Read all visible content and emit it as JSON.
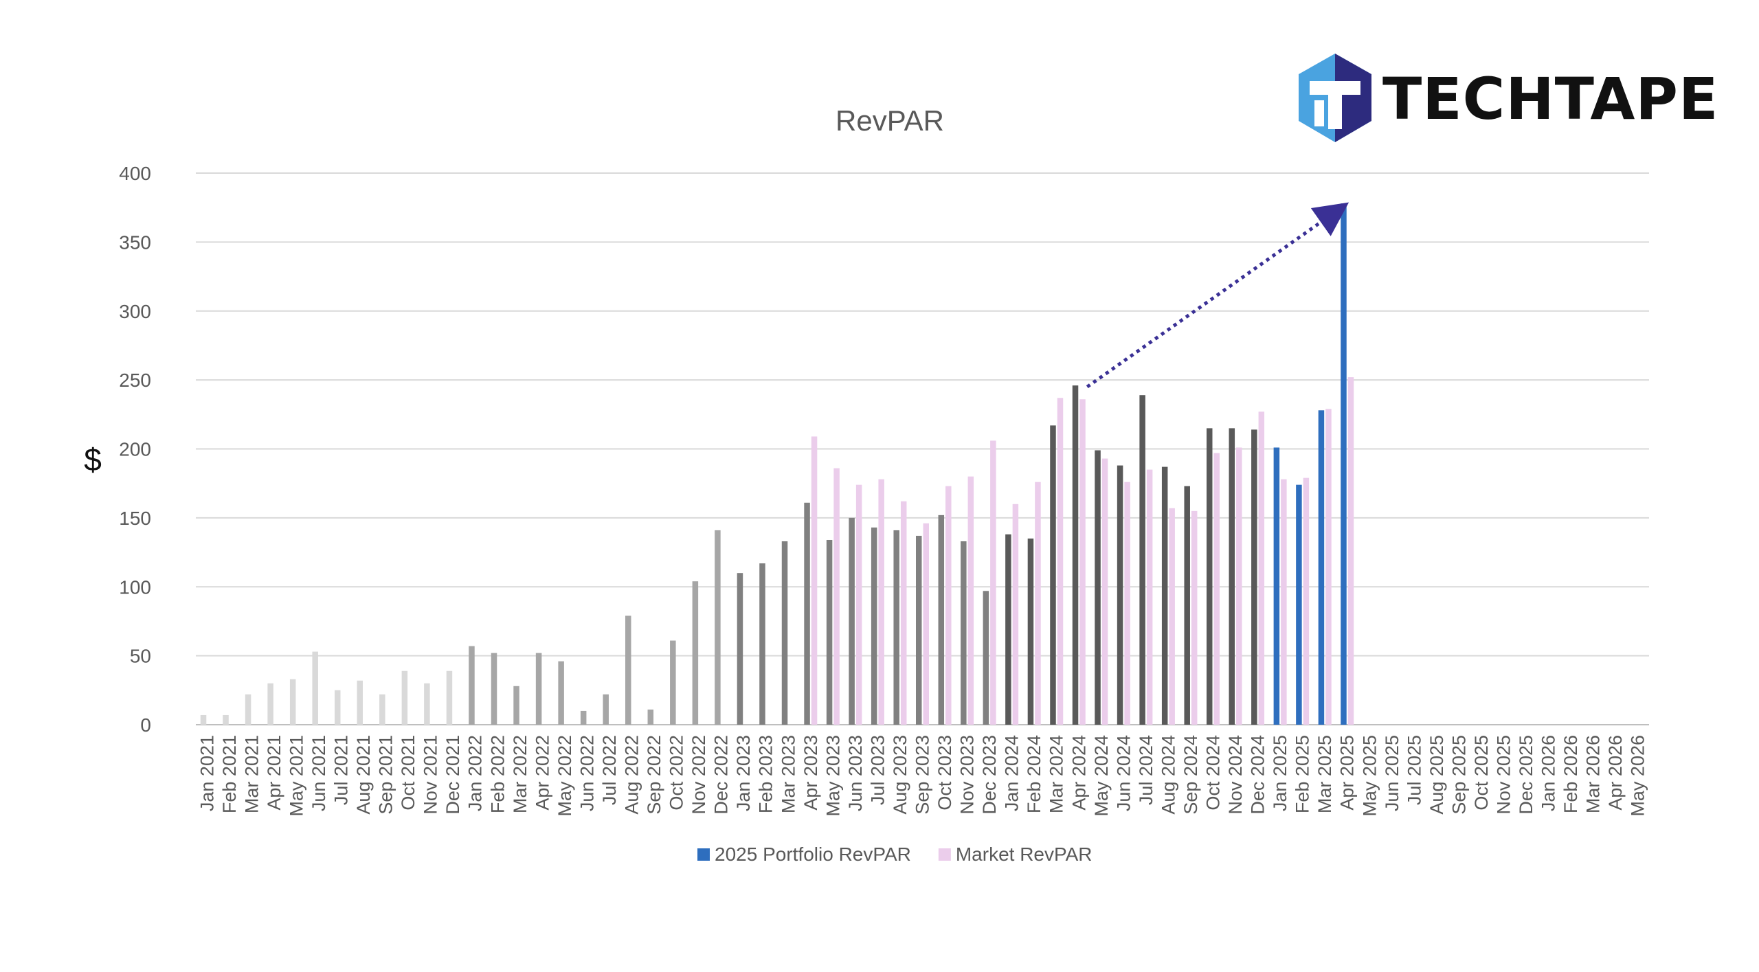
{
  "logo": {
    "text": "TECHTAPE",
    "icon": "hexagon-tt-logo-icon"
  },
  "chart_data": {
    "type": "bar",
    "title": "RevPAR",
    "ylabel": "$",
    "xlabel": "",
    "ylim": [
      0,
      400
    ],
    "yticks": [
      0,
      50,
      100,
      150,
      200,
      250,
      300,
      350,
      400
    ],
    "grid": true,
    "legend_position": "bottom",
    "categories": [
      "Jan 2021",
      "Feb 2021",
      "Mar 2021",
      "Apr 2021",
      "May 2021",
      "Jun 2021",
      "Jul 2021",
      "Aug 2021",
      "Sep 2021",
      "Oct 2021",
      "Nov 2021",
      "Dec 2021",
      "Jan 2022",
      "Feb 2022",
      "Mar 2022",
      "Apr 2022",
      "May 2022",
      "Jun 2022",
      "Jul 2022",
      "Aug 2022",
      "Sep 2022",
      "Oct 2022",
      "Nov 2022",
      "Dec 2022",
      "Jan 2023",
      "Feb 2023",
      "Mar 2023",
      "Apr 2023",
      "May 2023",
      "Jun 2023",
      "Jul 2023",
      "Aug 2023",
      "Sep 2023",
      "Oct 2023",
      "Nov 2023",
      "Dec 2023",
      "Jan 2024",
      "Feb 2024",
      "Mar 2024",
      "Apr 2024",
      "May 2024",
      "Jun 2024",
      "Jul 2024",
      "Aug 2024",
      "Sep 2024",
      "Oct 2024",
      "Nov 2024",
      "Dec 2024",
      "Jan 2025",
      "Feb 2025",
      "Mar 2025",
      "Apr 2025",
      "May 2025",
      "Jun 2025",
      "Jul 2025",
      "Aug 2025",
      "Sep 2025",
      "Oct 2025",
      "Nov 2025",
      "Dec 2025",
      "Jan 2026",
      "Feb 2026",
      "Mar 2026",
      "Apr 2026",
      "May 2026"
    ],
    "series": [
      {
        "name": "2025 Portfolio RevPAR",
        "legend": true,
        "color": "#2e6ebe",
        "colors": {
          "2021": "#d9d9d9",
          "2022": "#a6a6a6",
          "2023": "#808080",
          "2024": "#595959",
          "2025": "#2e6ebe"
        },
        "values": [
          7,
          7,
          22,
          30,
          33,
          53,
          25,
          32,
          22,
          39,
          30,
          39,
          57,
          52,
          28,
          52,
          46,
          10,
          22,
          79,
          11,
          61,
          104,
          141,
          110,
          117,
          133,
          161,
          134,
          150,
          143,
          141,
          137,
          152,
          133,
          97,
          138,
          135,
          217,
          246,
          199,
          188,
          239,
          187,
          173,
          215,
          215,
          214,
          201,
          174,
          228,
          378,
          null,
          null,
          null,
          null,
          null,
          null,
          null,
          null,
          null,
          null,
          null,
          null,
          null
        ]
      },
      {
        "name": "Market RevPAR",
        "legend": true,
        "color": "#ebcdeb",
        "values": [
          null,
          null,
          null,
          null,
          null,
          null,
          null,
          null,
          null,
          null,
          null,
          null,
          null,
          null,
          null,
          null,
          null,
          null,
          null,
          null,
          null,
          null,
          null,
          null,
          null,
          null,
          null,
          209,
          186,
          174,
          178,
          162,
          146,
          173,
          180,
          206,
          160,
          176,
          237,
          236,
          193,
          176,
          185,
          157,
          155,
          197,
          201,
          227,
          178,
          179,
          229,
          252,
          null,
          null,
          null,
          null,
          null,
          null,
          null,
          null,
          null,
          null,
          null,
          null,
          null
        ]
      }
    ],
    "annotations": [
      {
        "type": "dotted-arrow",
        "from": {
          "category": "Apr 2024",
          "value": 248
        },
        "to": {
          "category": "Apr 2025",
          "value": 376
        },
        "color": "#3a3095"
      }
    ]
  }
}
